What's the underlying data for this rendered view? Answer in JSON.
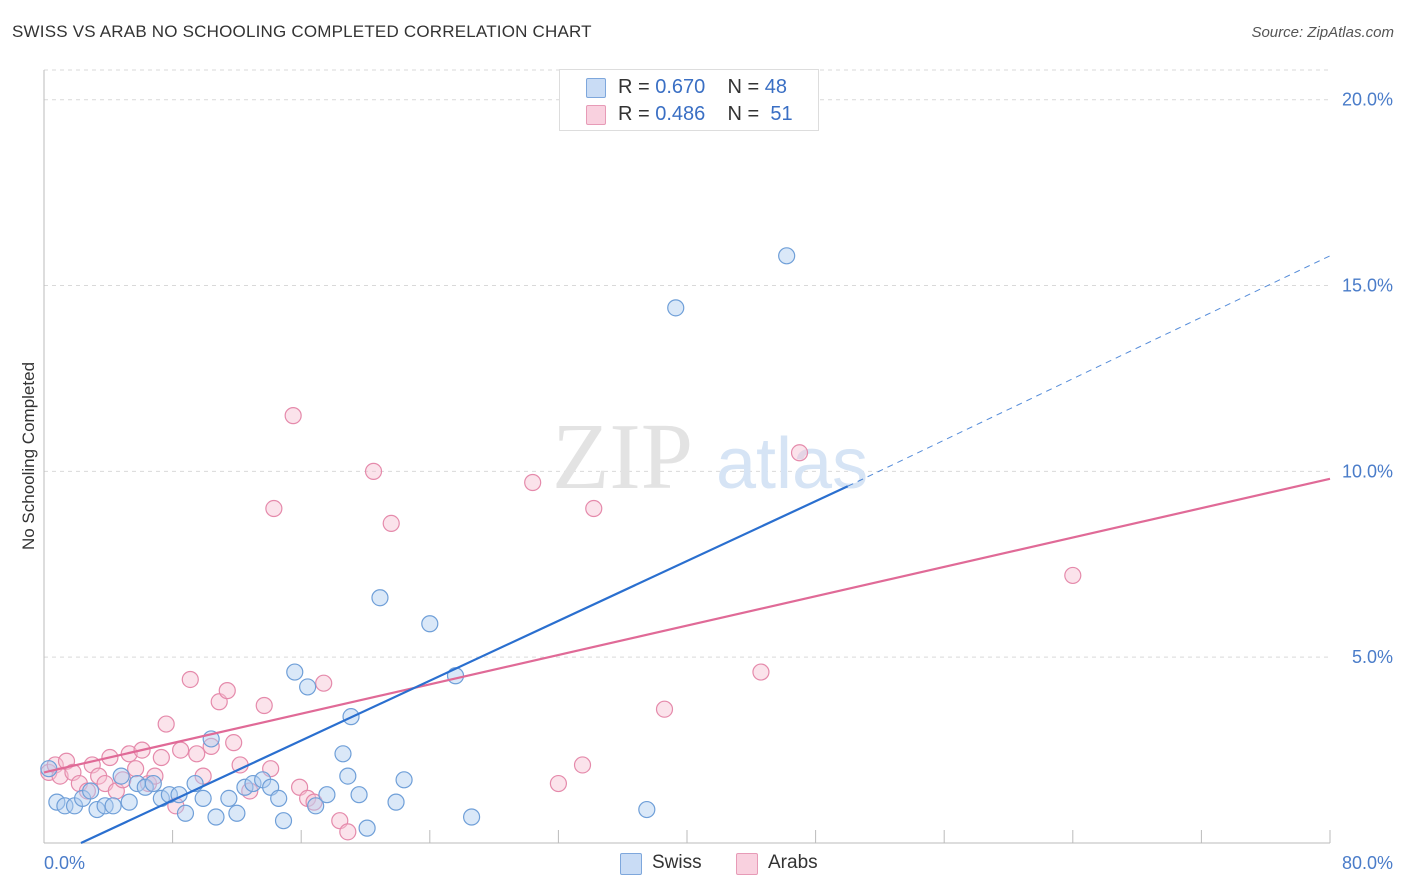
{
  "title": "SWISS VS ARAB NO SCHOOLING COMPLETED CORRELATION CHART",
  "source": "Source: ZipAtlas.com",
  "watermark": {
    "zip": "ZIP",
    "atlas": "atlas"
  },
  "legend": {
    "swiss": {
      "r_label": "R =",
      "r_value": "0.670",
      "n_label": "N =",
      "n_value": "48"
    },
    "arabs": {
      "r_label": "R =",
      "r_value": "0.486",
      "n_label": "N =",
      "n_value": "51"
    }
  },
  "colors": {
    "swiss_fill": "#aecbef",
    "swiss_stroke": "#6f9fd8",
    "swiss_line": "#2a6fcf",
    "arabs_fill": "#f6c0d2",
    "arabs_stroke": "#e58aab",
    "arabs_line": "#e06a97",
    "tick_text": "#4a7cc9",
    "grid": "#d9d9d9"
  },
  "chart_data": {
    "type": "scatter",
    "title": "SWISS VS ARAB NO SCHOOLING COMPLETED CORRELATION CHART",
    "xlabel": "",
    "ylabel": "No Schooling Completed",
    "xlim": [
      0,
      80
    ],
    "ylim": [
      0,
      20.8
    ],
    "x_tick_labels": [
      "0.0%",
      "80.0%"
    ],
    "y_ticks": [
      5,
      10,
      15,
      20
    ],
    "y_tick_labels": [
      "5.0%",
      "10.0%",
      "15.0%",
      "20.0%"
    ],
    "legend_entries": [
      "Swiss",
      "Arabs"
    ],
    "series": [
      {
        "name": "Swiss",
        "r": 0.67,
        "n": 48,
        "trend": {
          "x0": 2.3,
          "y0": 0.0,
          "x1": 50.0,
          "y1": 9.6,
          "dash_to_x": 80.0,
          "dash_to_y": 15.8
        },
        "points": [
          [
            0.3,
            2.0
          ],
          [
            0.8,
            1.1
          ],
          [
            1.3,
            1.0
          ],
          [
            1.9,
            1.0
          ],
          [
            2.4,
            1.2
          ],
          [
            2.9,
            1.4
          ],
          [
            3.3,
            0.9
          ],
          [
            3.8,
            1.0
          ],
          [
            4.3,
            1.0
          ],
          [
            4.8,
            1.8
          ],
          [
            5.3,
            1.1
          ],
          [
            5.8,
            1.6
          ],
          [
            6.3,
            1.5
          ],
          [
            6.8,
            1.6
          ],
          [
            7.3,
            1.2
          ],
          [
            7.8,
            1.3
          ],
          [
            8.4,
            1.3
          ],
          [
            8.8,
            0.8
          ],
          [
            9.4,
            1.6
          ],
          [
            9.9,
            1.2
          ],
          [
            10.4,
            2.8
          ],
          [
            10.7,
            0.7
          ],
          [
            11.5,
            1.2
          ],
          [
            12.0,
            0.8
          ],
          [
            12.5,
            1.5
          ],
          [
            13.0,
            1.6
          ],
          [
            13.6,
            1.7
          ],
          [
            14.1,
            1.5
          ],
          [
            14.6,
            1.2
          ],
          [
            14.9,
            0.6
          ],
          [
            15.6,
            4.6
          ],
          [
            16.4,
            4.2
          ],
          [
            16.9,
            1.0
          ],
          [
            17.6,
            1.3
          ],
          [
            18.6,
            2.4
          ],
          [
            18.9,
            1.8
          ],
          [
            19.1,
            3.4
          ],
          [
            19.6,
            1.3
          ],
          [
            20.1,
            0.4
          ],
          [
            20.9,
            6.6
          ],
          [
            21.9,
            1.1
          ],
          [
            22.4,
            1.7
          ],
          [
            24.0,
            5.9
          ],
          [
            25.6,
            4.5
          ],
          [
            26.6,
            0.7
          ],
          [
            37.5,
            0.9
          ],
          [
            39.3,
            14.4
          ],
          [
            46.2,
            15.8
          ]
        ]
      },
      {
        "name": "Arabs",
        "r": 0.486,
        "n": 51,
        "trend": {
          "x0": 0.0,
          "y0": 1.9,
          "x1": 80.0,
          "y1": 9.8
        },
        "points": [
          [
            0.3,
            1.9
          ],
          [
            0.7,
            2.1
          ],
          [
            1.0,
            1.8
          ],
          [
            1.4,
            2.2
          ],
          [
            1.8,
            1.9
          ],
          [
            2.2,
            1.6
          ],
          [
            2.7,
            1.4
          ],
          [
            3.0,
            2.1
          ],
          [
            3.4,
            1.8
          ],
          [
            3.8,
            1.6
          ],
          [
            4.1,
            2.3
          ],
          [
            4.5,
            1.4
          ],
          [
            4.9,
            1.7
          ],
          [
            5.3,
            2.4
          ],
          [
            5.7,
            2.0
          ],
          [
            6.1,
            2.5
          ],
          [
            6.5,
            1.6
          ],
          [
            6.9,
            1.8
          ],
          [
            7.3,
            2.3
          ],
          [
            7.6,
            3.2
          ],
          [
            8.2,
            1.0
          ],
          [
            8.5,
            2.5
          ],
          [
            9.1,
            4.4
          ],
          [
            9.5,
            2.4
          ],
          [
            9.9,
            1.8
          ],
          [
            10.4,
            2.6
          ],
          [
            10.9,
            3.8
          ],
          [
            11.4,
            4.1
          ],
          [
            11.8,
            2.7
          ],
          [
            12.2,
            2.1
          ],
          [
            12.8,
            1.4
          ],
          [
            13.7,
            3.7
          ],
          [
            14.1,
            2.0
          ],
          [
            14.3,
            9.0
          ],
          [
            15.5,
            11.5
          ],
          [
            15.9,
            1.5
          ],
          [
            16.4,
            1.2
          ],
          [
            16.8,
            1.1
          ],
          [
            17.4,
            4.3
          ],
          [
            18.4,
            0.6
          ],
          [
            18.9,
            0.3
          ],
          [
            20.5,
            10.0
          ],
          [
            21.6,
            8.6
          ],
          [
            30.4,
            9.7
          ],
          [
            32.0,
            1.6
          ],
          [
            33.5,
            2.1
          ],
          [
            34.2,
            9.0
          ],
          [
            38.6,
            3.6
          ],
          [
            44.6,
            4.6
          ],
          [
            47.0,
            10.5
          ],
          [
            64.0,
            7.2
          ]
        ]
      }
    ]
  }
}
